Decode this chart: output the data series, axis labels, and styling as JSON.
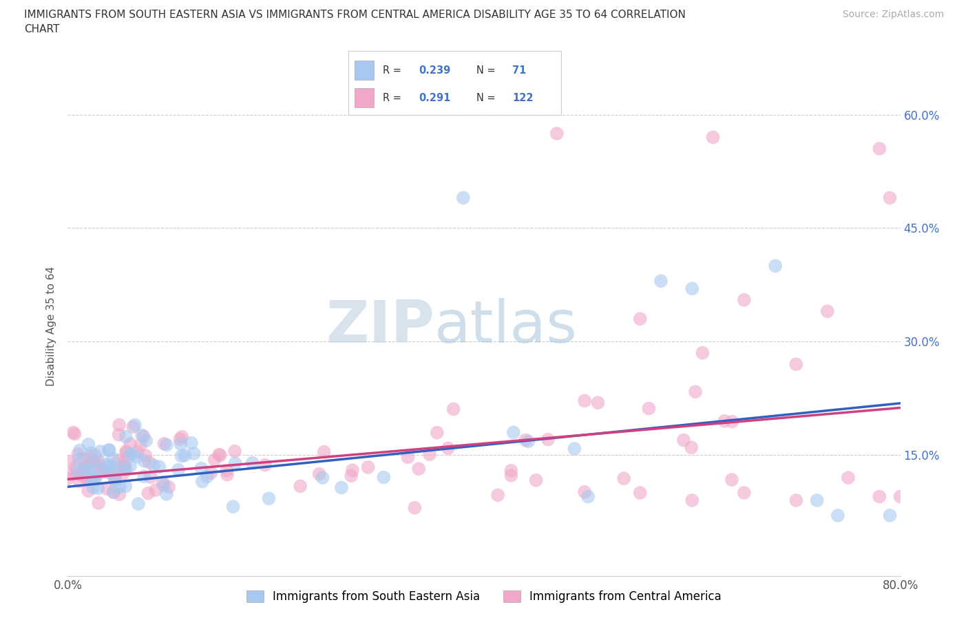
{
  "title_line1": "IMMIGRANTS FROM SOUTH EASTERN ASIA VS IMMIGRANTS FROM CENTRAL AMERICA DISABILITY AGE 35 TO 64 CORRELATION",
  "title_line2": "CHART",
  "source_text": "Source: ZipAtlas.com",
  "ylabel": "Disability Age 35 to 64",
  "xlim": [
    0.0,
    0.8
  ],
  "ylim": [
    -0.01,
    0.65
  ],
  "yticks": [
    0.15,
    0.3,
    0.45,
    0.6
  ],
  "ytick_labels": [
    "15.0%",
    "30.0%",
    "45.0%",
    "60.0%"
  ],
  "xticks": [
    0.0,
    0.1,
    0.2,
    0.3,
    0.4,
    0.5,
    0.6,
    0.7,
    0.8
  ],
  "xtick_labels": [
    "0.0%",
    "",
    "",
    "",
    "",
    "",
    "",
    "",
    "80.0%"
  ],
  "blue_color": "#a8c8f0",
  "pink_color": "#f0a8c8",
  "blue_line_color": "#3060c0",
  "pink_line_color": "#d04080",
  "legend_blue_label": "Immigrants from South Eastern Asia",
  "legend_pink_label": "Immigrants from Central America",
  "R_blue": 0.239,
  "N_blue": 71,
  "R_pink": 0.291,
  "N_pink": 122,
  "watermark_zip": "ZIP",
  "watermark_atlas": "atlas",
  "blue_intercept": 0.108,
  "blue_slope": 0.138,
  "pink_intercept": 0.118,
  "pink_slope": 0.118
}
